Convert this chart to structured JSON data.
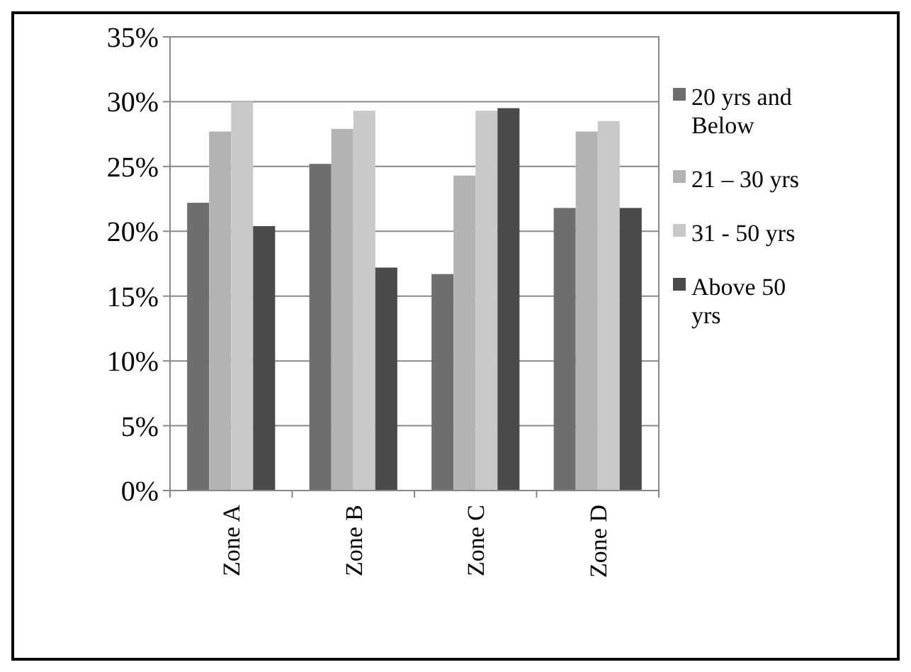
{
  "chart_data": {
    "type": "bar",
    "categories": [
      "Zone A",
      "Zone B",
      "Zone C",
      "Zone D"
    ],
    "series": [
      {
        "name": "20 yrs and Below",
        "color": "#6e6e6e",
        "values": [
          22.2,
          25.2,
          16.7,
          21.8
        ]
      },
      {
        "name": "21 – 30 yrs",
        "color": "#b3b3b3",
        "values": [
          27.7,
          27.9,
          24.3,
          27.7
        ]
      },
      {
        "name": "31 - 50 yrs",
        "color": "#c9c9c9",
        "values": [
          30.0,
          29.3,
          29.3,
          28.5
        ]
      },
      {
        "name": "Above 50 yrs",
        "color": "#4a4a4a",
        "values": [
          20.4,
          17.2,
          29.5,
          21.8
        ]
      }
    ],
    "ylim": [
      0,
      35
    ],
    "yticks": [
      {
        "value": 0,
        "label": "0%"
      },
      {
        "value": 5,
        "label": "5%"
      },
      {
        "value": 10,
        "label": "10%"
      },
      {
        "value": 15,
        "label": "15%"
      },
      {
        "value": 20,
        "label": "20%"
      },
      {
        "value": 25,
        "label": "25%"
      },
      {
        "value": 30,
        "label": "30%"
      },
      {
        "value": 35,
        "label": "35%"
      }
    ],
    "grid": "y",
    "legend": "right"
  }
}
